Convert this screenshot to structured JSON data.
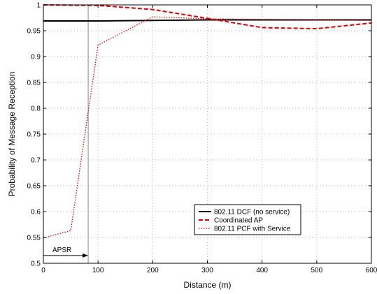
{
  "chart_data": {
    "type": "line",
    "title": "",
    "xlabel": "Distance (m)",
    "ylabel": "Probability of Message Reception",
    "xlim": [
      0,
      600
    ],
    "ylim": [
      0.5,
      1.0
    ],
    "xticks": [
      0,
      100,
      200,
      300,
      400,
      500,
      600
    ],
    "yticks": [
      0.5,
      0.55,
      0.6,
      0.65,
      0.7,
      0.75,
      0.8,
      0.85,
      0.9,
      0.95,
      1.0
    ],
    "ytick_labels": [
      "0.5",
      "0.55",
      "0.6",
      "0.65",
      "0.7",
      "0.75",
      "0.8",
      "0.85",
      "0.9",
      "0.95",
      "1"
    ],
    "grid": true,
    "legend_position": "lower-right",
    "series": [
      {
        "name": "802.11 DCF (no service)",
        "color": "#000000",
        "style": "solid",
        "x": [
          0,
          100,
          200,
          300,
          400,
          500,
          600
        ],
        "y": [
          0.969,
          0.969,
          0.97,
          0.971,
          0.971,
          0.971,
          0.971
        ]
      },
      {
        "name": "Coordinated AP",
        "color": "#e00000",
        "style": "dashed",
        "x": [
          0,
          100,
          200,
          300,
          400,
          500,
          600
        ],
        "y": [
          1.0,
          0.999,
          0.991,
          0.974,
          0.956,
          0.954,
          0.965
        ]
      },
      {
        "name": "802.11 PCF with Service",
        "color": "#e00000",
        "style": "dotted",
        "x": [
          0,
          50,
          100,
          200,
          300,
          400,
          500,
          600
        ],
        "y": [
          0.549,
          0.563,
          0.922,
          0.977,
          0.973,
          0.972,
          0.971,
          0.97
        ]
      }
    ],
    "annotations": [
      {
        "text": "APSR",
        "type": "arrow",
        "x_from": 0,
        "x_to": 82,
        "y": 0.515
      }
    ],
    "reference_lines": [
      {
        "orientation": "vertical",
        "x": 82,
        "color": "#888888"
      }
    ]
  }
}
